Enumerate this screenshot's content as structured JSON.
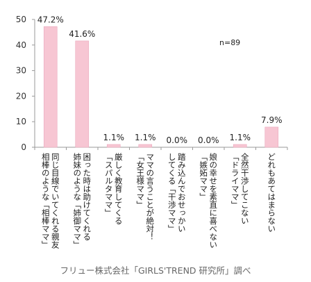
{
  "chart_data": {
    "type": "bar",
    "categories": [
      [
        "同じ目線でいてくれる親友",
        "相棒のような「相棒ママ」"
      ],
      [
        "困った時は助けてくれる",
        "姉妹のような「姉御ママ」"
      ],
      [
        "厳しく教育してくる",
        "「スパルタママ」"
      ],
      [
        "ママの言うことが絶対！",
        "「女王様ママ」"
      ],
      [
        "踏み込んでおせっかい",
        "してくる「干渉ママ」"
      ],
      [
        "娘の幸せを素直に喜べない",
        "「嫉妬ママ」"
      ],
      [
        "全然干渉してこない",
        "「ドライママ」"
      ],
      [
        "どれもあてはまらない"
      ]
    ],
    "values": [
      47.2,
      41.6,
      1.1,
      1.1,
      0.0,
      0.0,
      1.1,
      7.9
    ],
    "data_labels": [
      "47.2%",
      "41.6%",
      "1.1%",
      "1.1%",
      "0.0%",
      "0.0%",
      "1.1%",
      "7.9%"
    ],
    "ylim": [
      0,
      50
    ],
    "yticks": [
      0,
      10,
      20,
      30,
      40,
      50
    ],
    "annotation": "n=89",
    "bar_color": "#f7c6d3",
    "bar_stroke": "#eaa9bd",
    "grid": false
  },
  "source": "フリュー株式会社「GIRLS'TREND 研究所」調べ"
}
